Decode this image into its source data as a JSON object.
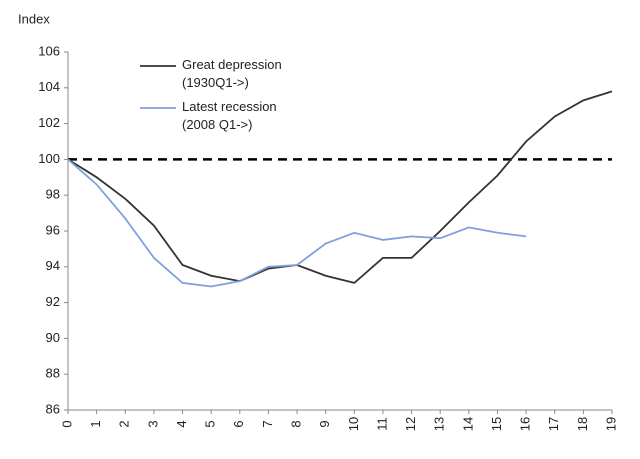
{
  "chart_data": {
    "type": "line",
    "y_label": "Index",
    "x": [
      0,
      1,
      2,
      3,
      4,
      5,
      6,
      7,
      8,
      9,
      10,
      11,
      12,
      13,
      14,
      15,
      16,
      17,
      18,
      19
    ],
    "xlim": [
      0,
      19
    ],
    "xticks": [
      0,
      1,
      2,
      3,
      4,
      5,
      6,
      7,
      8,
      9,
      10,
      11,
      12,
      13,
      14,
      15,
      16,
      17,
      18,
      19
    ],
    "ylim": [
      86,
      106
    ],
    "yticks": [
      86,
      88,
      90,
      92,
      94,
      96,
      98,
      100,
      102,
      104,
      106
    ],
    "reference_line": 100,
    "grid": false,
    "legend_position": "upper-left",
    "series": [
      {
        "name": [
          "Great depression",
          "(1930Q1->)"
        ],
        "color": "#333333",
        "values": [
          100,
          99.0,
          97.8,
          96.3,
          94.1,
          93.5,
          93.2,
          93.9,
          94.1,
          93.5,
          93.1,
          94.5,
          94.5,
          96.0,
          97.6,
          99.1,
          101.0,
          102.4,
          103.3,
          103.8
        ]
      },
      {
        "name": [
          "Latest recession",
          "(2008 Q1->)"
        ],
        "color": "#7f9fdf",
        "values": [
          100,
          98.6,
          96.7,
          94.5,
          93.1,
          92.9,
          93.2,
          94.0,
          94.1,
          95.3,
          95.9,
          95.5,
          95.7,
          95.6,
          96.2,
          95.9,
          95.7,
          null,
          null,
          null
        ]
      }
    ]
  }
}
